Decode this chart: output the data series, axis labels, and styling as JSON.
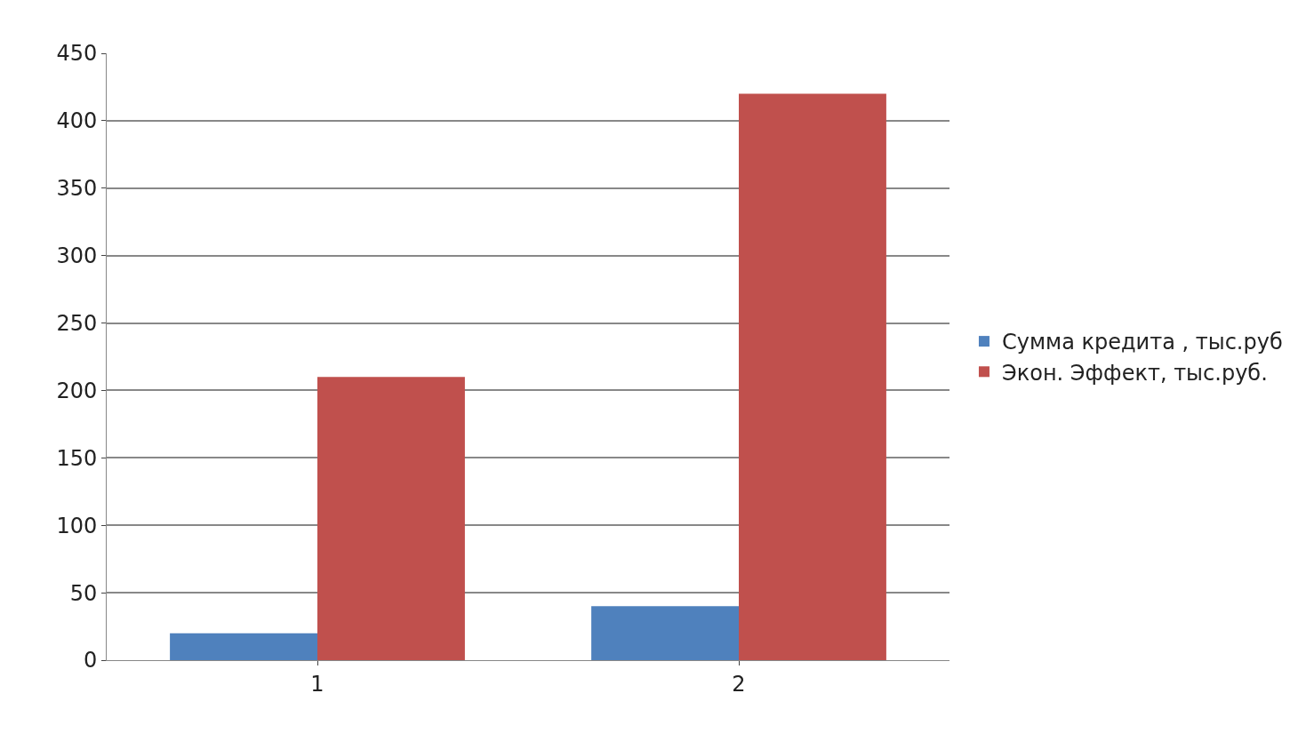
{
  "chart_data": {
    "type": "bar",
    "categories": [
      "1",
      "2"
    ],
    "series": [
      {
        "name": "Сумма кредита , тыс.руб",
        "color": "#4f81bd",
        "values": [
          20,
          40
        ]
      },
      {
        "name": "Экон. Эффект, тыс.руб.",
        "color": "#c0504d",
        "values": [
          210,
          420
        ]
      }
    ],
    "ylim": [
      0,
      450
    ],
    "yticks": [
      0,
      50,
      100,
      150,
      200,
      250,
      300,
      350,
      400,
      450
    ],
    "grid": "y",
    "legend": "right"
  }
}
